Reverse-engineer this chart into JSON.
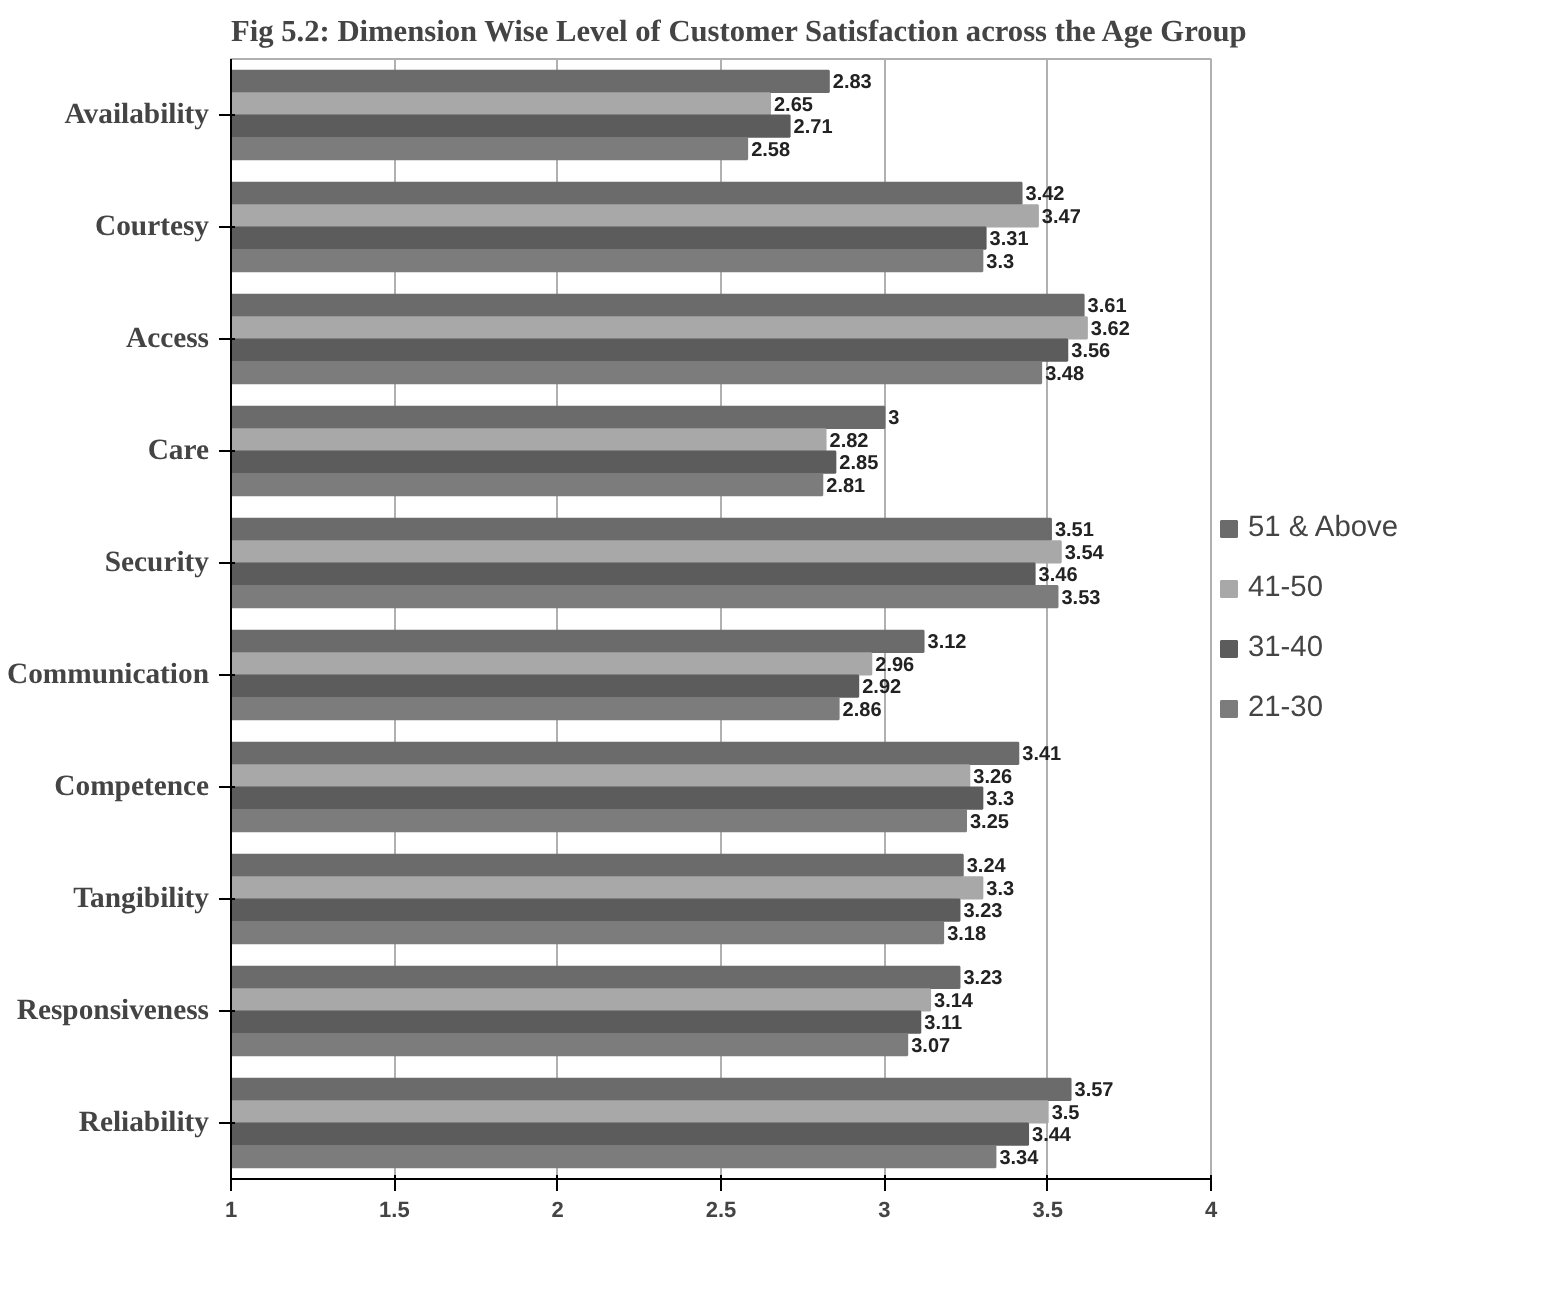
{
  "chart_data": {
    "type": "bar",
    "orientation": "horizontal",
    "title": "Fig 5.2: Dimension Wise Level of Customer Satisfaction across the Age Group",
    "categories": [
      "Availability",
      "Courtesy",
      "Access",
      "Care",
      "Security",
      "Communication",
      "Competence",
      "Tangibility",
      "Responsiveness",
      "Reliability"
    ],
    "series": [
      {
        "name": "51 & Above",
        "color": "#6b6b6b",
        "values": [
          2.83,
          3.42,
          3.61,
          3,
          3.51,
          3.12,
          3.41,
          3.24,
          3.23,
          3.57
        ]
      },
      {
        "name": "41-50",
        "color": "#a8a8a8",
        "values": [
          2.65,
          3.47,
          3.62,
          2.82,
          3.54,
          2.96,
          3.26,
          3.3,
          3.14,
          3.5
        ]
      },
      {
        "name": "31-40",
        "color": "#5c5c5c",
        "values": [
          2.71,
          3.31,
          3.56,
          2.85,
          3.46,
          2.92,
          3.3,
          3.23,
          3.11,
          3.44
        ]
      },
      {
        "name": "21-30",
        "color": "#7c7c7c",
        "values": [
          2.58,
          3.3,
          3.48,
          2.81,
          3.53,
          2.86,
          3.25,
          3.18,
          3.07,
          3.34
        ]
      }
    ],
    "xlim": [
      1,
      4
    ],
    "xticks": [
      1,
      1.5,
      2,
      2.5,
      3,
      3.5,
      4
    ],
    "grid": "x",
    "legend": "right",
    "data_labels": true
  }
}
